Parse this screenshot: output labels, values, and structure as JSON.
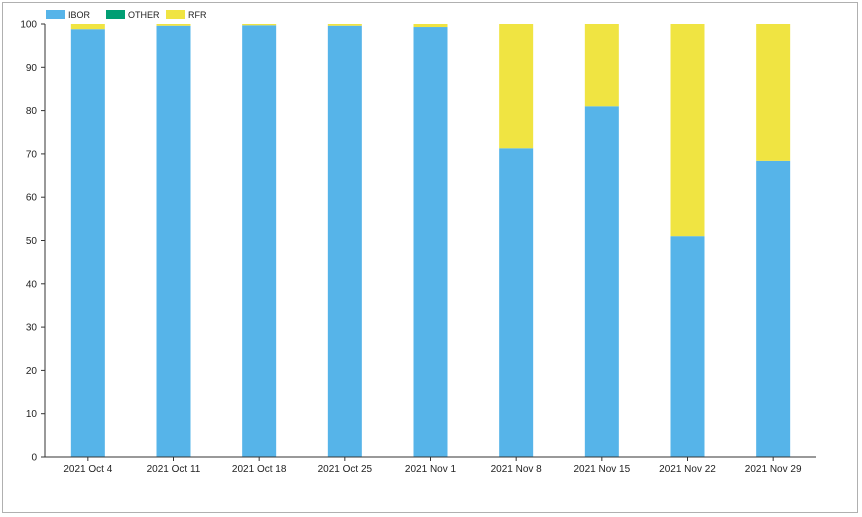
{
  "chart_data": {
    "type": "bar",
    "stacked": true,
    "title": "",
    "xlabel": "",
    "ylabel": "",
    "ylim": [
      0,
      100
    ],
    "yticks": [
      0,
      10,
      20,
      30,
      40,
      50,
      60,
      70,
      80,
      90,
      100
    ],
    "grid": false,
    "legend_position": "top-left",
    "categories": [
      "2021 Oct 4",
      "2021 Oct 11",
      "2021 Oct 18",
      "2021 Oct 25",
      "2021 Nov 1",
      "2021 Nov 8",
      "2021 Nov 15",
      "2021 Nov 22",
      "2021 Nov 29"
    ],
    "series": [
      {
        "name": "IBOR",
        "color": "#56b4e9",
        "values": [
          98.8,
          99.6,
          99.7,
          99.6,
          99.3,
          71.3,
          81.0,
          51.0,
          68.4
        ]
      },
      {
        "name": "OTHER",
        "color": "#009e73",
        "values": [
          0,
          0,
          0,
          0,
          0,
          0,
          0,
          0,
          0
        ]
      },
      {
        "name": "RFR",
        "color": "#f0e442",
        "values": [
          1.2,
          0.4,
          0.3,
          0.4,
          0.7,
          28.7,
          19.0,
          49.0,
          31.6
        ]
      }
    ]
  }
}
